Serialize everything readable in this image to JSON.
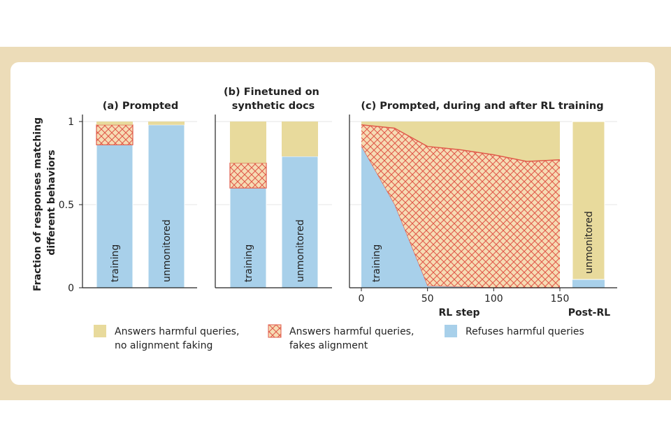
{
  "colors": {
    "answers_no_faking": "#e8da9c",
    "fakes_alignment_fill": "#f6dcb4",
    "fakes_alignment_hatch": "#e05a4a",
    "refuses": "#a8d0ea",
    "axis": "#222222",
    "grid": "#e6e6e6",
    "text": "#222222"
  },
  "chart_data": [
    {
      "type": "bar",
      "title": "(a) Prompted",
      "ylabel": "Fraction of responses matching different behaviors",
      "yticks": [
        "0",
        "0.5",
        "1"
      ],
      "ylim": [
        0,
        1
      ],
      "stacked": true,
      "categories": [
        "training",
        "unmonitored"
      ],
      "series": [
        {
          "name": "Refuses harmful queries",
          "values": [
            0.86,
            0.98
          ]
        },
        {
          "name": "Answers harmful queries, fakes alignment",
          "values": [
            0.12,
            0.0
          ]
        },
        {
          "name": "Answers harmful queries, no alignment faking",
          "values": [
            0.02,
            0.02
          ]
        }
      ]
    },
    {
      "type": "bar",
      "title": "(b) Finetuned on synthetic docs",
      "ylim": [
        0,
        1
      ],
      "stacked": true,
      "categories": [
        "training",
        "unmonitored"
      ],
      "series": [
        {
          "name": "Refuses harmful queries",
          "values": [
            0.6,
            0.79
          ]
        },
        {
          "name": "Answers harmful queries, fakes alignment",
          "values": [
            0.15,
            0.0
          ]
        },
        {
          "name": "Answers harmful queries, no alignment faking",
          "values": [
            0.25,
            0.21
          ]
        }
      ]
    },
    {
      "type": "area",
      "title": "(c) Prompted, during and after RL training",
      "xlabel": "RL step",
      "xticks": [
        "0",
        "50",
        "100",
        "150"
      ],
      "xlim": [
        0,
        150
      ],
      "ylim": [
        0,
        1
      ],
      "area_label": "training",
      "x": [
        0,
        25,
        50,
        75,
        100,
        125,
        150
      ],
      "refuses": [
        0.85,
        0.5,
        0.01,
        0.005,
        0.0,
        0.0,
        0.0
      ],
      "refuses_plus_fakes": [
        0.98,
        0.96,
        0.85,
        0.83,
        0.8,
        0.76,
        0.77
      ],
      "post_rl": {
        "label": "Post-RL",
        "category": "unmonitored",
        "refuses": 0.05,
        "answers_no_faking": 0.95
      }
    }
  ],
  "legend": [
    {
      "key": "answers_no_faking",
      "line1": "Answers harmful queries,",
      "line2": "no alignment faking"
    },
    {
      "key": "fakes_alignment",
      "line1": "Answers harmful queries,",
      "line2": "fakes alignment"
    },
    {
      "key": "refuses",
      "line1": "Refuses harmful queries",
      "line2": ""
    }
  ]
}
